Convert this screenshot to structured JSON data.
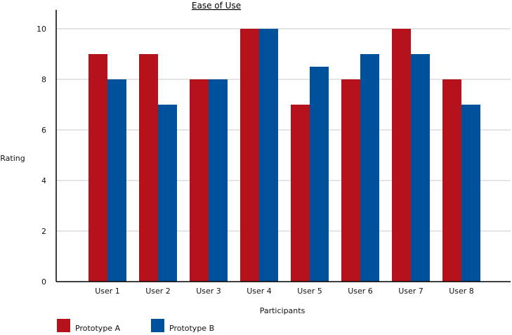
{
  "chart_data": {
    "type": "bar",
    "title": "Ease of Use",
    "xlabel": "Participants",
    "ylabel": "Rating",
    "categories": [
      "User 1",
      "User 2",
      "User 3",
      "User 4",
      "User 5",
      "User 6",
      "User 7",
      "User 8"
    ],
    "series": [
      {
        "name": "Prototype A",
        "color": "#b5121b",
        "values": [
          9,
          9,
          8,
          10,
          7,
          8,
          10,
          8
        ]
      },
      {
        "name": "Prototype B",
        "color": "#00519b",
        "values": [
          8,
          7,
          8,
          10,
          8.5,
          9,
          9,
          7
        ]
      }
    ],
    "ylim": [
      0,
      10
    ],
    "yticks": [
      0,
      2,
      4,
      6,
      8,
      10
    ],
    "grid": true,
    "legend_position": "bottom-left"
  }
}
